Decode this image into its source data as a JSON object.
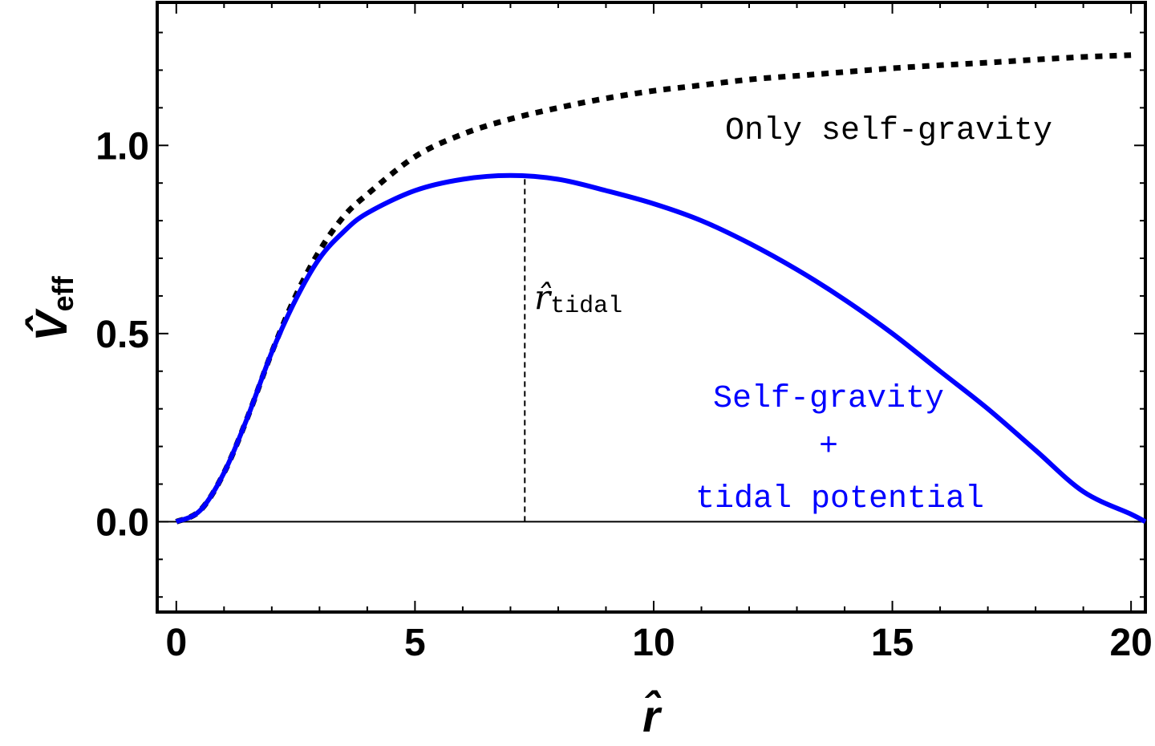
{
  "chart_data": {
    "type": "line",
    "xlabel": "r̂",
    "ylabel": {
      "main": "V̂",
      "sub": "eff"
    },
    "xlim": [
      -0.4,
      20.3
    ],
    "ylim": [
      -0.24,
      1.38
    ],
    "x_ticks": [
      "0",
      "5",
      "10",
      "15",
      "20"
    ],
    "y_ticks": [
      "0.0",
      "0.5",
      "1.0"
    ],
    "series": [
      {
        "name": "Only self-gravity",
        "style": "dotted",
        "color": "#000000",
        "x": [
          0,
          0.5,
          1,
          1.5,
          2,
          2.5,
          3,
          3.5,
          4,
          5,
          6,
          7,
          8,
          9,
          10,
          11,
          12,
          13,
          14,
          15,
          16,
          17,
          18,
          19,
          20
        ],
        "y": [
          0,
          0.03,
          0.13,
          0.28,
          0.45,
          0.6,
          0.72,
          0.81,
          0.87,
          0.97,
          1.03,
          1.07,
          1.1,
          1.125,
          1.145,
          1.16,
          1.175,
          1.185,
          1.195,
          1.205,
          1.213,
          1.22,
          1.228,
          1.235,
          1.24
        ]
      },
      {
        "name": "Self-gravity\n+\ntidal potential",
        "style": "solid",
        "color": "#0000ff",
        "x": [
          0,
          0.5,
          1,
          1.5,
          2,
          2.5,
          3,
          3.5,
          4,
          5,
          6,
          7,
          8,
          9,
          10,
          11,
          12,
          13,
          14,
          15,
          16,
          17,
          18,
          19,
          20,
          20.3
        ],
        "y": [
          0,
          0.03,
          0.13,
          0.28,
          0.45,
          0.59,
          0.7,
          0.77,
          0.82,
          0.88,
          0.91,
          0.92,
          0.91,
          0.88,
          0.845,
          0.8,
          0.74,
          0.67,
          0.59,
          0.5,
          0.4,
          0.3,
          0.19,
          0.08,
          0.02,
          0.0
        ]
      }
    ],
    "annotations": {
      "only_self_gravity": "Only self-gravity",
      "self_gravity_line1": "Self-gravity",
      "self_gravity_line2": "+",
      "self_gravity_line3": "tidal potential",
      "r_tidal_base": "r̂",
      "r_tidal_sub": "tidal",
      "r_tidal_x": 7.3
    },
    "grid": false
  }
}
